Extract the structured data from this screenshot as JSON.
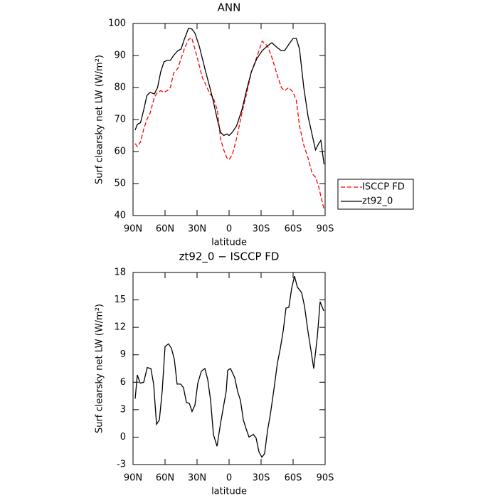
{
  "chart_data": [
    {
      "type": "line",
      "title": "ANN",
      "xlabel": "latitude",
      "ylabel": "Surf clearsky net LW (W/m²)",
      "x": [
        88,
        86,
        83,
        80,
        77,
        74,
        70,
        67,
        64,
        61,
        58,
        55,
        52,
        48,
        45,
        42,
        38,
        35,
        32,
        28,
        25,
        22,
        18,
        15,
        11,
        8,
        5,
        2,
        0,
        -3,
        -7,
        -12,
        -17,
        -21,
        -26,
        -31,
        -36,
        -40,
        -45,
        -49,
        -52,
        -56,
        -60,
        -63,
        -66,
        -70,
        -74,
        -78,
        -81,
        -84,
        -86,
        -89
      ],
      "series": [
        {
          "name": "ISCCP FD",
          "color": "#ff0000",
          "dash": true,
          "values": [
            62.5,
            61.5,
            63,
            67,
            70,
            72,
            77,
            78.5,
            79,
            78.5,
            79,
            80,
            84.5,
            86,
            89,
            92,
            95,
            95.5,
            92,
            87,
            83,
            81,
            78,
            77,
            73,
            64,
            60.5,
            58,
            57.5,
            59,
            64,
            72,
            79,
            85,
            89.5,
            94.5,
            93,
            89.5,
            84,
            80,
            79,
            80,
            78.5,
            76,
            68,
            62,
            58,
            53,
            52,
            49,
            46,
            42
          ]
        },
        {
          "name": "zt92_0",
          "color": "#000000",
          "dash": false,
          "values": [
            66.7,
            68.5,
            69,
            73,
            77.5,
            78.5,
            78,
            80,
            85,
            88,
            88.5,
            88.5,
            90,
            91.5,
            92,
            95,
            98.5,
            98.3,
            97,
            93,
            89,
            85,
            80,
            76,
            70,
            66,
            65,
            65.5,
            65,
            66,
            68,
            73,
            80,
            85,
            89,
            91.5,
            93,
            94,
            92.5,
            91.5,
            91.5,
            93.5,
            95.3,
            95.3,
            92,
            80,
            71,
            65,
            60.5,
            62.5,
            63.5,
            56
          ]
        }
      ],
      "xlim": [
        90,
        -90
      ],
      "xticks": [
        {
          "value": 90,
          "label": "90N"
        },
        {
          "value": 60,
          "label": "60N"
        },
        {
          "value": 30,
          "label": "30N"
        },
        0,
        {
          "value": -30,
          "label": "30S"
        },
        {
          "value": -60,
          "label": "60S"
        },
        {
          "value": -90,
          "label": "90S"
        }
      ],
      "ylim": [
        40,
        100
      ],
      "yticks": [
        40,
        50,
        60,
        70,
        80,
        90,
        100
      ],
      "legend": "right"
    },
    {
      "type": "line",
      "title": "zt92_0 − ISCCP FD",
      "xlabel": "latitude",
      "ylabel": "Surf clearsky net LW (W/m²)",
      "x": [
        88,
        86,
        83.3,
        80,
        76.7,
        73.3,
        70.7,
        68,
        65.3,
        62.7,
        60,
        56.7,
        54,
        51.3,
        48.7,
        45.3,
        42.7,
        40,
        37.3,
        34.7,
        32,
        29.3,
        26,
        22.7,
        20,
        17.3,
        14.7,
        11.3,
        8,
        5.3,
        2.7,
        1.3,
        -1.3,
        -5.3,
        -8,
        -10.7,
        -13.3,
        -16,
        -18.7,
        -22.7,
        -25.3,
        -28,
        -30.7,
        -33.3,
        -36,
        -38.7,
        -42,
        -45.3,
        -48,
        -50.7,
        -53.3,
        -56,
        -58.7,
        -61.3,
        -64,
        -68,
        -70.7,
        -74,
        -76.7,
        -79.3,
        -82.7,
        -85.3,
        -88.7
      ],
      "values": [
        4.2,
        6.8,
        5.9,
        6,
        7.6,
        7.5,
        5.8,
        1.4,
        1.9,
        5,
        9.9,
        10.2,
        9.7,
        8.5,
        5.8,
        5.8,
        5.4,
        3.8,
        3.7,
        2.8,
        3.5,
        5.9,
        7.2,
        7.5,
        6.3,
        4,
        0.3,
        -1,
        1.5,
        3.3,
        5,
        7.3,
        7.5,
        6.5,
        5,
        4,
        1.9,
        0.9,
        0,
        0.3,
        -0.1,
        -1.6,
        -2.2,
        -1.8,
        0.7,
        2.5,
        5.2,
        8.1,
        9.7,
        11.6,
        14.1,
        14.2,
        16.3,
        17.6,
        16.4,
        15.8,
        14.3,
        11.5,
        9.5,
        7.5,
        11,
        14.8,
        13.8
      ],
      "color": "#000000",
      "xlim": [
        90,
        -90
      ],
      "xticks": [
        {
          "value": 90,
          "label": "90N"
        },
        {
          "value": 60,
          "label": "60N"
        },
        {
          "value": 30,
          "label": "30N"
        },
        0,
        {
          "value": -30,
          "label": "30S"
        },
        {
          "value": -60,
          "label": "60S"
        },
        {
          "value": -90,
          "label": "90S"
        }
      ],
      "ylim": [
        -3,
        18
      ],
      "yticks": [
        -3,
        0,
        3,
        6,
        9,
        12,
        15,
        18
      ]
    }
  ]
}
